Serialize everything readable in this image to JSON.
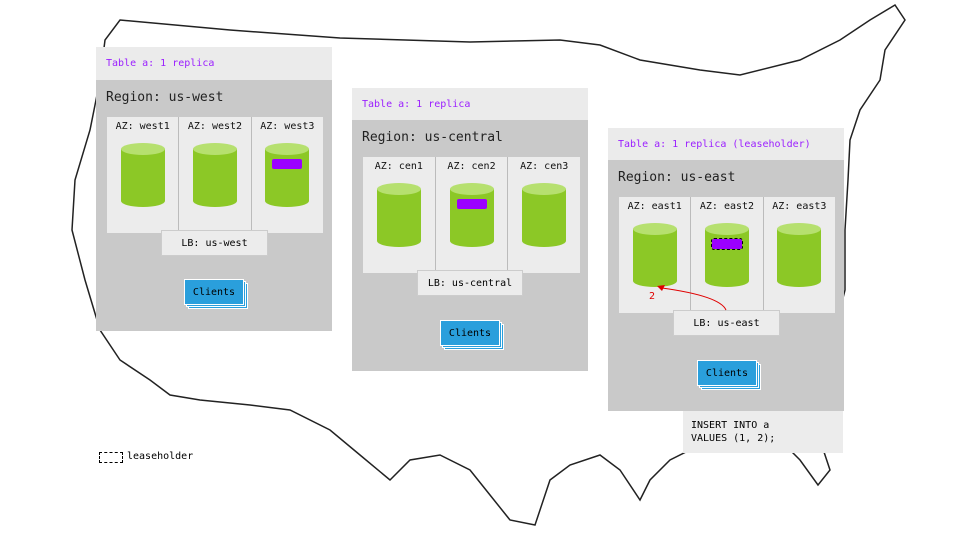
{
  "regions": [
    {
      "table_label": "Table a: 1 replica",
      "region_label": "Region: us-west",
      "azs": [
        "AZ: west1",
        "AZ: west2",
        "AZ: west3"
      ],
      "lb": "LB: us-west",
      "clients": "Clients"
    },
    {
      "table_label": "Table a: 1 replica",
      "region_label": "Region: us-central",
      "azs": [
        "AZ: cen1",
        "AZ: cen2",
        "AZ: cen3"
      ],
      "lb": "LB: us-central",
      "clients": "Clients"
    },
    {
      "table_label": "Table a: 1 replica (leaseholder)",
      "region_label": "Region: us-east",
      "azs": [
        "AZ: east1",
        "AZ: east2",
        "AZ: east3"
      ],
      "lb": "LB: us-east",
      "clients": "Clients"
    }
  ],
  "arrow_label": "2",
  "sql": [
    "INSERT INTO a",
    "VALUES (1, 2);"
  ],
  "legend": "leaseholder",
  "colors": {
    "replica": "#9b00ff",
    "node": "#8cc826",
    "clients": "#2a9fdc",
    "arrow": "#e00000"
  }
}
